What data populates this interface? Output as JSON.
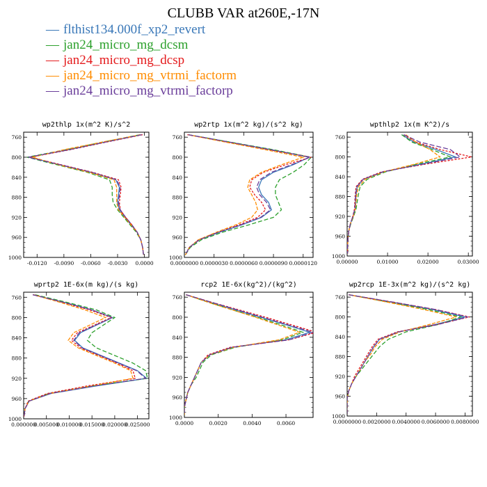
{
  "title": "CLUBB VAR at260E,-17N",
  "colors": {
    "flthist134.000f_xp2_revert": "#3a78b8",
    "jan24_micro_mg_dcsm": "#2ca02c",
    "jan24_micro_mg_dcsp": "#e41a1c",
    "jan24_micro_mg_vtrmi_factorm": "#ff8c00",
    "jan24_micro_mg_vtrmi_factorp": "#6a3d9a"
  },
  "legend": [
    {
      "label": "flthist134.000f_xp2_revert",
      "color": "#3a78b8"
    },
    {
      "label": "jan24_micro_mg_dcsm",
      "color": "#2ca02c"
    },
    {
      "label": "jan24_micro_mg_dcsp",
      "color": "#e41a1c"
    },
    {
      "label": "jan24_micro_mg_vtrmi_factorm",
      "color": "#ff8c00"
    },
    {
      "label": "jan24_micro_mg_vtrmi_factorp",
      "color": "#6a3d9a"
    }
  ],
  "chart_data": [
    {
      "type": "line",
      "title": "wp2thlp  1x(m^2 K)/s^2",
      "xlim": [
        -0.0135,
        0.0005
      ],
      "xticks": [
        "-0.0120",
        "-0.0090",
        "-0.0060",
        "-0.0030",
        "0.0000"
      ],
      "xtick_values": [
        -0.012,
        -0.009,
        -0.006,
        -0.003,
        0.0
      ],
      "ylim": [
        1000,
        750
      ],
      "yticks": [
        760,
        800,
        840,
        880,
        920,
        960,
        1000
      ],
      "y": [
        755,
        770,
        785,
        800,
        815,
        830,
        845,
        860,
        875,
        890,
        905,
        920,
        935,
        950,
        965,
        980,
        995
      ],
      "series": [
        {
          "name": "flthist134.000f_xp2_revert",
          "values": [
            -0.0003,
            -0.0045,
            -0.0085,
            -0.0129,
            -0.0095,
            -0.006,
            -0.0032,
            -0.0028,
            -0.0029,
            -0.003,
            -0.0028,
            -0.0022,
            -0.0015,
            -0.0008,
            -0.0004,
            -0.0002,
            -0.0001
          ]
        },
        {
          "name": "jan24_micro_mg_dcsm",
          "values": [
            -0.0005,
            -0.0047,
            -0.0088,
            -0.0131,
            -0.0098,
            -0.0064,
            -0.0039,
            -0.0036,
            -0.0036,
            -0.0035,
            -0.003,
            -0.0023,
            -0.0016,
            -0.0009,
            -0.0004,
            -0.0002,
            -0.0001
          ]
        },
        {
          "name": "jan24_micro_mg_dcsp",
          "values": [
            -0.0002,
            -0.0043,
            -0.0083,
            -0.0128,
            -0.0093,
            -0.0058,
            -0.0029,
            -0.0026,
            -0.0027,
            -0.0028,
            -0.0027,
            -0.0021,
            -0.0014,
            -0.0008,
            -0.0004,
            -0.0002,
            -0.0001
          ]
        },
        {
          "name": "jan24_micro_mg_vtrmi_factorm",
          "values": [
            -0.0004,
            -0.0048,
            -0.009,
            -0.0125,
            -0.0096,
            -0.0062,
            -0.0034,
            -0.0031,
            -0.0031,
            -0.0031,
            -0.0029,
            -0.0022,
            -0.0015,
            -0.0008,
            -0.0004,
            -0.0002,
            -0.0001
          ]
        },
        {
          "name": "jan24_micro_mg_vtrmi_factorp",
          "values": [
            -0.0003,
            -0.0044,
            -0.0084,
            -0.013,
            -0.0094,
            -0.0059,
            -0.0031,
            -0.0027,
            -0.0028,
            -0.0029,
            -0.0027,
            -0.0021,
            -0.0014,
            -0.0008,
            -0.0004,
            -0.0002,
            -0.0001
          ]
        }
      ]
    },
    {
      "type": "line",
      "title": "wp2rtp  1x(m^2 kg)/(s^2 kg)",
      "xlim": [
        0.0,
        1.3e-05
      ],
      "xticks": [
        "0.0000000",
        "0.0000030",
        "0.0000060",
        "0.0000090",
        "0.0000120"
      ],
      "xtick_values": [
        0.0,
        3e-06,
        6e-06,
        9e-06,
        1.2e-05
      ],
      "ylim": [
        1000,
        750
      ],
      "yticks": [
        760,
        800,
        840,
        880,
        920,
        960,
        1000
      ],
      "y": [
        755,
        770,
        785,
        800,
        815,
        830,
        845,
        860,
        875,
        890,
        905,
        920,
        935,
        950,
        965,
        980,
        995
      ],
      "series": [
        {
          "name": "flthist134.000f_xp2_revert",
          "values": [
            4e-07,
            4.6e-06,
            8.8e-06,
            1.26e-05,
            1.1e-05,
            9e-06,
            7.8e-06,
            7.5e-06,
            7.8e-06,
            8.5e-06,
            8.8e-06,
            7.8e-06,
            5.8e-06,
            3.5e-06,
            1.5e-06,
            5e-07,
            1e-07
          ]
        },
        {
          "name": "jan24_micro_mg_dcsm",
          "values": [
            4e-07,
            4.7e-06,
            9e-06,
            1.28e-05,
            1.21e-05,
            1.1e-05,
            9.6e-06,
            9.2e-06,
            9.2e-06,
            9.5e-06,
            9.8e-06,
            9e-06,
            6.5e-06,
            3.8e-06,
            1.7e-06,
            6e-07,
            1e-07
          ]
        },
        {
          "name": "jan24_micro_mg_dcsp",
          "values": [
            3e-07,
            4.4e-06,
            8.5e-06,
            1.28e-05,
            1.02e-05,
            8e-06,
            6.8e-06,
            6.6e-06,
            7.1e-06,
            7.8e-06,
            8.2e-06,
            7.4e-06,
            5.5e-06,
            3.3e-06,
            1.4e-06,
            5e-07,
            1e-07
          ]
        },
        {
          "name": "jan24_micro_mg_vtrmi_factorm",
          "values": [
            4e-07,
            4.2e-06,
            8.2e-06,
            1.2e-05,
            9.8e-06,
            7.8e-06,
            6.6e-06,
            6.4e-06,
            6.8e-06,
            7.2e-06,
            7.4e-06,
            6.8e-06,
            5.2e-06,
            3.2e-06,
            1.4e-06,
            5e-07,
            1e-07
          ]
        },
        {
          "name": "jan24_micro_mg_vtrmi_factorp",
          "values": [
            4e-07,
            4.6e-06,
            8.7e-06,
            1.27e-05,
            1.08e-05,
            8.8e-06,
            7.6e-06,
            7.3e-06,
            7.6e-06,
            8.3e-06,
            8.7e-06,
            7.7e-06,
            5.7e-06,
            3.4e-06,
            1.5e-06,
            5e-07,
            1e-07
          ]
        }
      ]
    },
    {
      "type": "line",
      "title": "wpthlp2  1x(m K^2)/s",
      "xlim": [
        0.0,
        0.031
      ],
      "xticks": [
        "0.00000",
        "0.01000",
        "0.02000",
        "0.03000"
      ],
      "xtick_values": [
        0.0,
        0.01,
        0.02,
        0.03
      ],
      "ylim": [
        1000,
        750
      ],
      "yticks": [
        760,
        800,
        840,
        880,
        920,
        960,
        1000
      ],
      "y": [
        755,
        770,
        785,
        800,
        815,
        830,
        845,
        860,
        875,
        890,
        905,
        920,
        935,
        950,
        965,
        980,
        995
      ],
      "series": [
        {
          "name": "flthist134.000f_xp2_revert",
          "values": [
            0.0135,
            0.0165,
            0.022,
            0.0268,
            0.018,
            0.009,
            0.004,
            0.0025,
            0.0022,
            0.0021,
            0.002,
            0.0015,
            0.0008,
            0.0004,
            0.0002,
            0.0001,
            0.0001
          ]
        },
        {
          "name": "jan24_micro_mg_dcsm",
          "values": [
            0.0135,
            0.016,
            0.021,
            0.0255,
            0.017,
            0.0095,
            0.005,
            0.0032,
            0.0028,
            0.0025,
            0.0022,
            0.0016,
            0.0009,
            0.0004,
            0.0002,
            0.0001,
            0.0001
          ]
        },
        {
          "name": "jan24_micro_mg_dcsp",
          "values": [
            0.014,
            0.017,
            0.023,
            0.0308,
            0.019,
            0.0085,
            0.0038,
            0.0022,
            0.002,
            0.0019,
            0.0018,
            0.0014,
            0.0008,
            0.0004,
            0.0002,
            0.0001,
            0.0001
          ]
        },
        {
          "name": "jan24_micro_mg_vtrmi_factorm",
          "values": [
            0.0145,
            0.017,
            0.0205,
            0.023,
            0.0165,
            0.009,
            0.0045,
            0.0028,
            0.0024,
            0.0022,
            0.002,
            0.0015,
            0.0008,
            0.0004,
            0.0002,
            0.0001,
            0.0001
          ]
        },
        {
          "name": "jan24_micro_mg_vtrmi_factorp",
          "values": [
            0.014,
            0.018,
            0.0255,
            0.028,
            0.0185,
            0.0088,
            0.004,
            0.0024,
            0.0021,
            0.002,
            0.0019,
            0.0014,
            0.0008,
            0.0004,
            0.0002,
            0.0001,
            0.0001
          ]
        }
      ]
    },
    {
      "type": "line",
      "title": "wprtp2  1E-6x(m kg)/(s kg)",
      "xlim": [
        0.0,
        0.0275
      ],
      "xticks": [
        "0.000000",
        "0.005000",
        "0.010000",
        "0.015000",
        "0.020000",
        "0.025000"
      ],
      "xtick_values": [
        0.0,
        0.005,
        0.01,
        0.015,
        0.02,
        0.025
      ],
      "ylim": [
        1000,
        750
      ],
      "yticks": [
        760,
        800,
        840,
        880,
        920,
        960,
        1000
      ],
      "y": [
        755,
        770,
        785,
        800,
        815,
        830,
        845,
        860,
        875,
        890,
        905,
        920,
        935,
        950,
        965,
        980,
        995
      ],
      "series": [
        {
          "name": "flthist134.000f_xp2_revert",
          "values": [
            0.002,
            0.009,
            0.015,
            0.0195,
            0.016,
            0.0125,
            0.0112,
            0.013,
            0.017,
            0.021,
            0.025,
            0.027,
            0.016,
            0.006,
            0.0012,
            0.0003,
            0.0001
          ]
        },
        {
          "name": "jan24_micro_mg_dcsm",
          "values": [
            0.0025,
            0.0095,
            0.016,
            0.02,
            0.0175,
            0.015,
            0.014,
            0.016,
            0.02,
            0.024,
            0.0268,
            0.0272,
            0.015,
            0.0055,
            0.0011,
            0.0003,
            0.0001
          ]
        },
        {
          "name": "jan24_micro_mg_dcsp",
          "values": [
            0.002,
            0.0085,
            0.0145,
            0.0192,
            0.0155,
            0.0118,
            0.0105,
            0.0125,
            0.0165,
            0.0205,
            0.024,
            0.0245,
            0.014,
            0.0052,
            0.001,
            0.0003,
            0.0001
          ]
        },
        {
          "name": "jan24_micro_mg_vtrmi_factorm",
          "values": [
            0.0022,
            0.008,
            0.0135,
            0.018,
            0.0145,
            0.011,
            0.0098,
            0.012,
            0.016,
            0.02,
            0.0235,
            0.024,
            0.015,
            0.0058,
            0.0012,
            0.0003,
            0.0001
          ]
        },
        {
          "name": "jan24_micro_mg_vtrmi_factorp",
          "values": [
            0.002,
            0.0088,
            0.015,
            0.0195,
            0.0158,
            0.0122,
            0.011,
            0.0128,
            0.0168,
            0.0208,
            0.0248,
            0.0268,
            0.0155,
            0.0058,
            0.0012,
            0.0003,
            0.0001
          ]
        }
      ]
    },
    {
      "type": "line",
      "title": "rcp2  1E-6x(kg^2)/(kg^2)",
      "xlim": [
        0.0,
        0.0076
      ],
      "xticks": [
        "0.0000",
        "0.0020",
        "0.0040",
        "0.0060"
      ],
      "xtick_values": [
        0.0,
        0.002,
        0.004,
        0.006
      ],
      "ylim": [
        1000,
        750
      ],
      "yticks": [
        760,
        800,
        840,
        880,
        920,
        960,
        1000
      ],
      "y": [
        755,
        770,
        785,
        800,
        815,
        830,
        845,
        860,
        875,
        890,
        905,
        920,
        935,
        950,
        965,
        980,
        995
      ],
      "series": [
        {
          "name": "flthist134.000f_xp2_revert",
          "values": [
            0.0001,
            0.0015,
            0.003,
            0.0045,
            0.006,
            0.0074,
            0.006,
            0.0028,
            0.0015,
            0.001,
            0.0008,
            0.0006,
            0.0004,
            0.0002,
            0.0001,
            0.0,
            0.0
          ]
        },
        {
          "name": "jan24_micro_mg_dcsm",
          "values": [
            0.0001,
            0.0014,
            0.0028,
            0.0043,
            0.0057,
            0.007,
            0.0058,
            0.003,
            0.0016,
            0.0011,
            0.0009,
            0.0007,
            0.0004,
            0.0002,
            0.0001,
            0.0,
            0.0
          ]
        },
        {
          "name": "jan24_micro_mg_dcsp",
          "values": [
            0.0001,
            0.0016,
            0.0032,
            0.0048,
            0.0063,
            0.0078,
            0.0062,
            0.0027,
            0.0014,
            0.001,
            0.0008,
            0.0006,
            0.0004,
            0.0002,
            0.0001,
            0.0,
            0.0
          ]
        },
        {
          "name": "jan24_micro_mg_vtrmi_factorm",
          "values": [
            0.0001,
            0.0014,
            0.0028,
            0.0042,
            0.0055,
            0.0068,
            0.0056,
            0.0029,
            0.0015,
            0.001,
            0.0008,
            0.0006,
            0.0004,
            0.0002,
            0.0001,
            0.0,
            0.0
          ]
        },
        {
          "name": "jan24_micro_mg_vtrmi_factorp",
          "values": [
            0.0001,
            0.0016,
            0.0031,
            0.0046,
            0.0061,
            0.0076,
            0.0062,
            0.0028,
            0.0015,
            0.001,
            0.0008,
            0.0006,
            0.0004,
            0.0002,
            0.0001,
            0.0,
            0.0
          ]
        }
      ]
    },
    {
      "type": "line",
      "title": "wp2rcp  1E-3x(m^2 kg)/(s^2 kg)",
      "xlim": [
        0.0,
        0.0085
      ],
      "xticks": [
        "0.0000000",
        "0.0020000",
        "0.0040000",
        "0.0060000",
        "0.0080000"
      ],
      "xtick_values": [
        0.0,
        0.002,
        0.004,
        0.006,
        0.008
      ],
      "ylim": [
        1000,
        750
      ],
      "yticks": [
        760,
        800,
        840,
        880,
        920,
        960,
        1000
      ],
      "y": [
        755,
        770,
        785,
        800,
        815,
        830,
        845,
        860,
        875,
        890,
        905,
        920,
        935,
        950,
        965,
        980,
        995
      ],
      "series": [
        {
          "name": "flthist134.000f_xp2_revert",
          "values": [
            0.0001,
            0.003,
            0.0058,
            0.008,
            0.006,
            0.0035,
            0.0022,
            0.0018,
            0.0015,
            0.0012,
            0.0009,
            0.0006,
            0.0003,
            0.0001,
            0.0,
            0.0,
            0.0
          ]
        },
        {
          "name": "jan24_micro_mg_dcsm",
          "values": [
            0.0001,
            0.0028,
            0.0055,
            0.0077,
            0.0062,
            0.004,
            0.0028,
            0.0022,
            0.0018,
            0.0014,
            0.001,
            0.0006,
            0.0003,
            0.0001,
            0.0,
            0.0,
            0.0
          ]
        },
        {
          "name": "jan24_micro_mg_dcsp",
          "values": [
            0.0001,
            0.0031,
            0.006,
            0.0083,
            0.0061,
            0.0034,
            0.0021,
            0.0017,
            0.0014,
            0.0011,
            0.0008,
            0.0005,
            0.0003,
            0.0001,
            0.0,
            0.0,
            0.0
          ]
        },
        {
          "name": "jan24_micro_mg_vtrmi_factorm",
          "values": [
            0.0001,
            0.0027,
            0.0052,
            0.0074,
            0.0056,
            0.0036,
            0.0024,
            0.0019,
            0.0016,
            0.0012,
            0.0009,
            0.0006,
            0.0003,
            0.0001,
            0.0,
            0.0,
            0.0
          ]
        },
        {
          "name": "jan24_micro_mg_vtrmi_factorp",
          "values": [
            0.0001,
            0.0031,
            0.006,
            0.0082,
            0.0062,
            0.0035,
            0.0022,
            0.0018,
            0.0015,
            0.0012,
            0.0009,
            0.0006,
            0.0003,
            0.0001,
            0.0,
            0.0,
            0.0
          ]
        }
      ]
    }
  ]
}
